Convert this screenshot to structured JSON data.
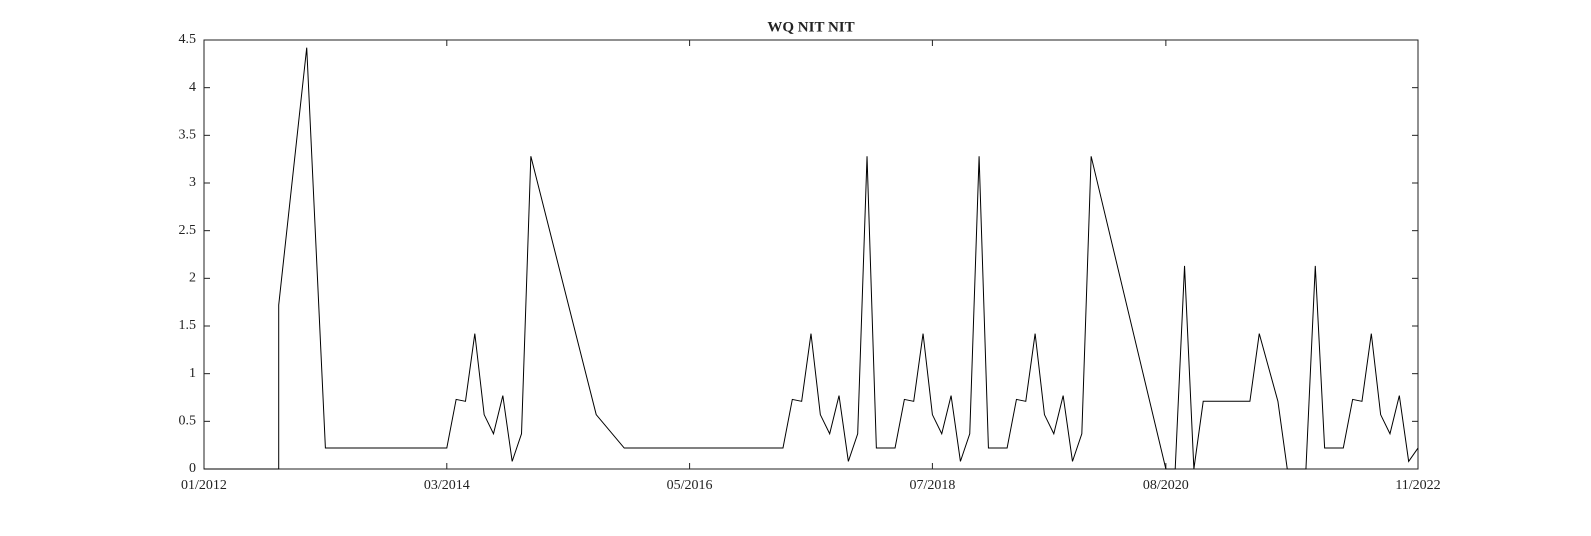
{
  "chart_data": {
    "type": "line",
    "title": "WQ NIT NIT",
    "color": "#000000",
    "x": [
      "2012-01",
      "2012-09",
      "2012-09",
      "2012-12",
      "2013-02",
      "2014-03",
      "2014-04",
      "2014-05",
      "2014-06",
      "2014-07",
      "2014-08",
      "2014-09",
      "2014-10",
      "2014-11",
      "2014-12",
      "2015-07",
      "2015-10",
      "2017-03",
      "2017-04",
      "2017-05",
      "2017-06",
      "2017-07",
      "2017-08",
      "2017-09",
      "2017-10",
      "2017-11",
      "2017-12",
      "2018-01",
      "2018-03",
      "2018-04",
      "2018-05",
      "2018-06",
      "2018-07",
      "2018-08",
      "2018-09",
      "2018-10",
      "2018-11",
      "2018-12",
      "2019-01",
      "2019-03",
      "2019-04",
      "2019-05",
      "2019-06",
      "2019-07",
      "2019-08",
      "2019-09",
      "2019-10",
      "2019-11",
      "2019-12",
      "2020-08",
      "2020-09",
      "2020-10",
      "2020-11",
      "2020-12",
      "2021-05",
      "2021-06",
      "2021-08",
      "2021-09",
      "2021-11",
      "2021-12",
      "2022-01",
      "2022-03",
      "2022-04",
      "2022-05",
      "2022-06",
      "2022-07",
      "2022-08",
      "2022-09",
      "2022-10",
      "2022-11"
    ],
    "values": [
      0,
      0,
      1.72,
      4.42,
      0.22,
      0.22,
      0.73,
      0.71,
      1.42,
      0.57,
      0.37,
      0.77,
      0.08,
      0.37,
      3.28,
      0.57,
      0.22,
      0.22,
      0.73,
      0.71,
      1.42,
      0.57,
      0.37,
      0.77,
      0.08,
      0.37,
      3.28,
      0.22,
      0.22,
      0.73,
      0.71,
      1.42,
      0.57,
      0.37,
      0.77,
      0.08,
      0.37,
      3.28,
      0.22,
      0.22,
      0.73,
      0.71,
      1.42,
      0.57,
      0.37,
      0.77,
      0.08,
      0.37,
      3.28,
      0,
      0,
      2.13,
      0,
      0.71,
      0.71,
      1.42,
      0.71,
      0,
      0,
      2.13,
      0.22,
      0.22,
      0.73,
      0.71,
      1.42,
      0.57,
      0.37,
      0.77,
      0.08,
      0.22
    ],
    "xlim": [
      "2012-01",
      "2022-11"
    ],
    "xticks": [
      {
        "value": "2012-01",
        "label": "01/2012"
      },
      {
        "value": "2014-03",
        "label": "03/2014"
      },
      {
        "value": "2016-05",
        "label": "05/2016"
      },
      {
        "value": "2018-07",
        "label": "07/2018"
      },
      {
        "value": "2020-08",
        "label": "08/2020"
      },
      {
        "value": "2022-11",
        "label": "11/2022"
      }
    ],
    "ylim": [
      0,
      4.5
    ],
    "yticks": [
      0,
      0.5,
      1,
      1.5,
      2,
      2.5,
      3,
      3.5,
      4,
      4.5
    ]
  }
}
